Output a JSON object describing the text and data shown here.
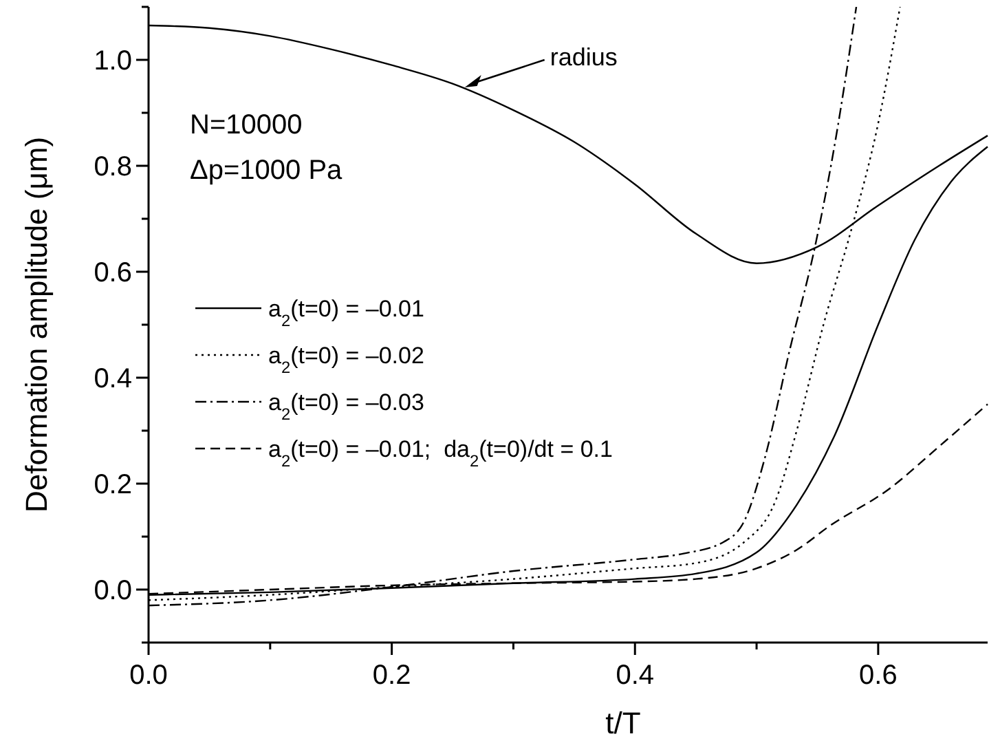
{
  "chart_data": {
    "type": "line",
    "xlabel": "t/T",
    "ylabel": "Deformation amplitude (μm)",
    "xlim": [
      0,
      0.69
    ],
    "ylim": [
      -0.1,
      1.1
    ],
    "xticks": [
      {
        "value": 0,
        "label": "0.0"
      },
      {
        "value": 0.1,
        "label": null
      },
      {
        "value": 0.2,
        "label": "0.2"
      },
      {
        "value": 0.3,
        "label": null
      },
      {
        "value": 0.4,
        "label": "0.4"
      },
      {
        "value": 0.5,
        "label": null
      },
      {
        "value": 0.6,
        "label": "0.6"
      }
    ],
    "yticks": [
      {
        "value": -0.1,
        "label": null
      },
      {
        "value": 0,
        "label": "0.0"
      },
      {
        "value": 0.1,
        "label": null
      },
      {
        "value": 0.2,
        "label": "0.2"
      },
      {
        "value": 0.3,
        "label": null
      },
      {
        "value": 0.4,
        "label": "0.4"
      },
      {
        "value": 0.5,
        "label": null
      },
      {
        "value": 0.6,
        "label": "0.6"
      },
      {
        "value": 0.7,
        "label": null
      },
      {
        "value": 0.8,
        "label": "0.8"
      },
      {
        "value": 0.9,
        "label": null
      },
      {
        "value": 1.0,
        "label": "1.0"
      },
      {
        "value": 1.1,
        "label": null
      }
    ],
    "grid": false,
    "legend": "left",
    "annotations": [
      {
        "text": "radius",
        "x": 0.26,
        "y": 0.948
      },
      "N=10000",
      "Δp=1000 Pa"
    ],
    "series": [
      {
        "color": "#000000",
        "line_style": "solid",
        "x": [
          0,
          0.05,
          0.1,
          0.15,
          0.2,
          0.25,
          0.3,
          0.35,
          0.4,
          0.45,
          0.5,
          0.55,
          0.6,
          0.65,
          0.69
        ],
        "values": [
          1.065,
          1.06,
          1.045,
          1.02,
          0.99,
          0.955,
          0.905,
          0.845,
          0.765,
          0.672,
          0.616,
          0.647,
          0.725,
          0.8,
          0.857
        ]
      },
      {
        "name": "a$_{2}$(t=0) = –0.01",
        "color": "#000000",
        "line_style": "solid",
        "x": [
          0,
          0.1,
          0.2,
          0.3,
          0.4,
          0.45,
          0.5,
          0.533,
          0.564,
          0.6,
          0.63,
          0.66,
          0.69
        ],
        "values": [
          -0.01,
          -0.005,
          0.003,
          0.012,
          0.02,
          0.03,
          0.07,
          0.16,
          0.29,
          0.5,
          0.66,
          0.77,
          0.836
        ]
      },
      {
        "name": "a$_{2}$(t=0) = –0.02",
        "color": "#000000",
        "line_style": "dotted",
        "x": [
          0,
          0.1,
          0.2,
          0.3,
          0.4,
          0.45,
          0.49,
          0.516,
          0.533,
          0.555,
          0.578,
          0.6,
          0.618
        ],
        "values": [
          -0.02,
          -0.01,
          0.005,
          0.02,
          0.04,
          0.05,
          0.09,
          0.17,
          0.3,
          0.5,
          0.68,
          0.88,
          1.1
        ]
      },
      {
        "name": "a$_{2}$(t=0) = –0.03",
        "color": "#000000",
        "line_style": "dashdot",
        "x": [
          0,
          0.1,
          0.2,
          0.3,
          0.4,
          0.44,
          0.473,
          0.49,
          0.507,
          0.527,
          0.548,
          0.565,
          0.582
        ],
        "values": [
          -0.03,
          -0.02,
          0.005,
          0.035,
          0.057,
          0.068,
          0.09,
          0.13,
          0.25,
          0.45,
          0.647,
          0.85,
          1.1
        ]
      },
      {
        "name": "a$_{2}$(t=0) = –0.01;  da$_{2}$(t=0)/dt = 0.1",
        "color": "#000000",
        "line_style": "dashed",
        "x": [
          0,
          0.1,
          0.2,
          0.3,
          0.4,
          0.45,
          0.5,
          0.533,
          0.56,
          0.609,
          0.65,
          0.69
        ],
        "values": [
          -0.008,
          0.0,
          0.008,
          0.012,
          0.015,
          0.02,
          0.04,
          0.075,
          0.12,
          0.19,
          0.27,
          0.35
        ]
      }
    ]
  }
}
